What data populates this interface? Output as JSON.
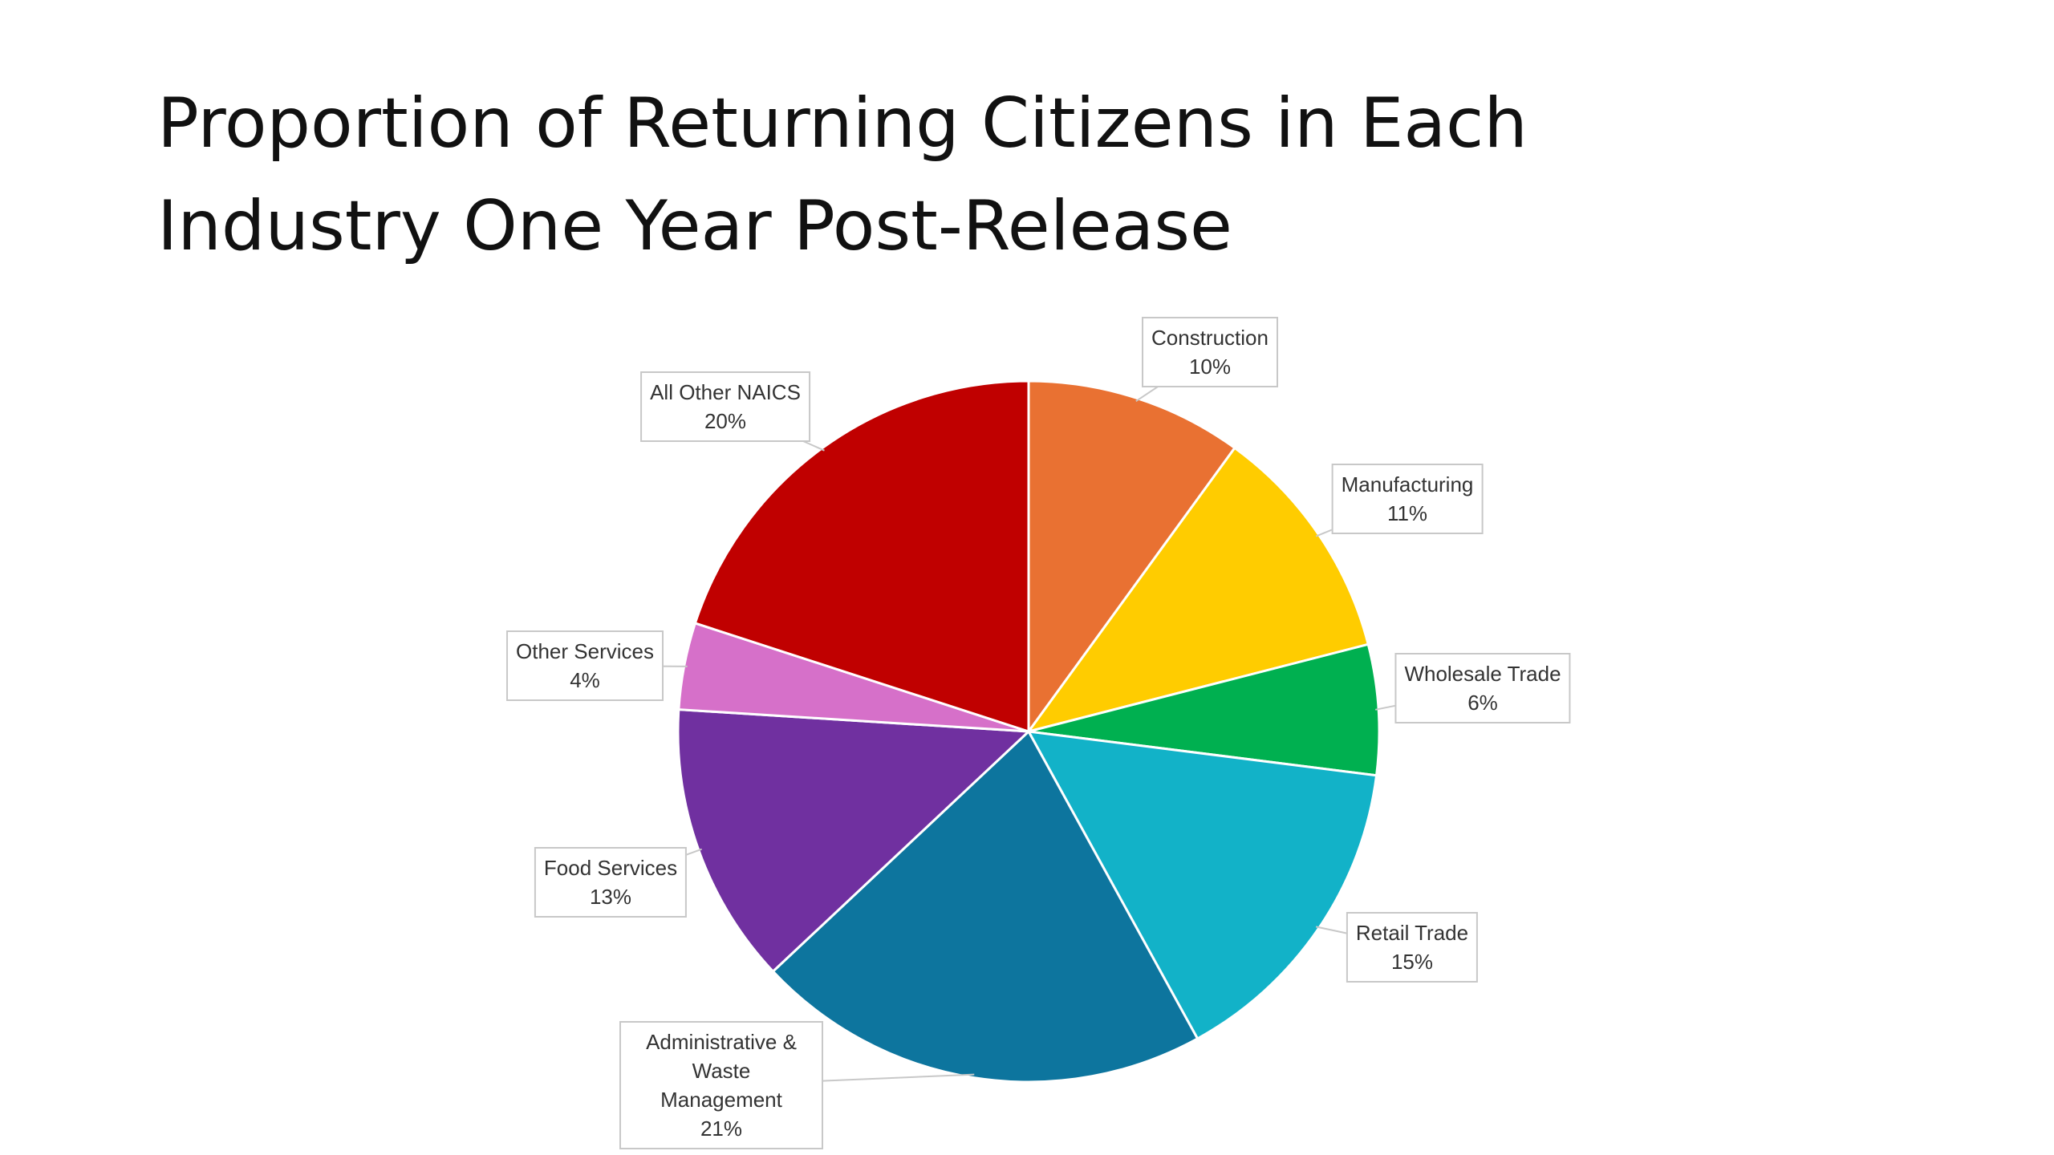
{
  "chart_data": {
    "type": "pie",
    "title": "Proportion of Returning Citizens in Each Industry One Year Post-Release",
    "categories": [
      "Construction",
      "Manufacturing",
      "Wholesale Trade",
      "Retail Trade",
      "Administrative & Waste Management",
      "Food Services",
      "Other Services",
      "All Other NAICS"
    ],
    "values": [
      10,
      11,
      6,
      15,
      21,
      13,
      4,
      20
    ],
    "value_labels": [
      "10%",
      "11%",
      "6%",
      "15%",
      "21%",
      "13%",
      "4%",
      "20%"
    ],
    "colors": [
      "#e97132",
      "#ffcc00",
      "#00b050",
      "#12b2c8",
      "#0d759e",
      "#7030a0",
      "#d670c9",
      "#c00000"
    ]
  }
}
